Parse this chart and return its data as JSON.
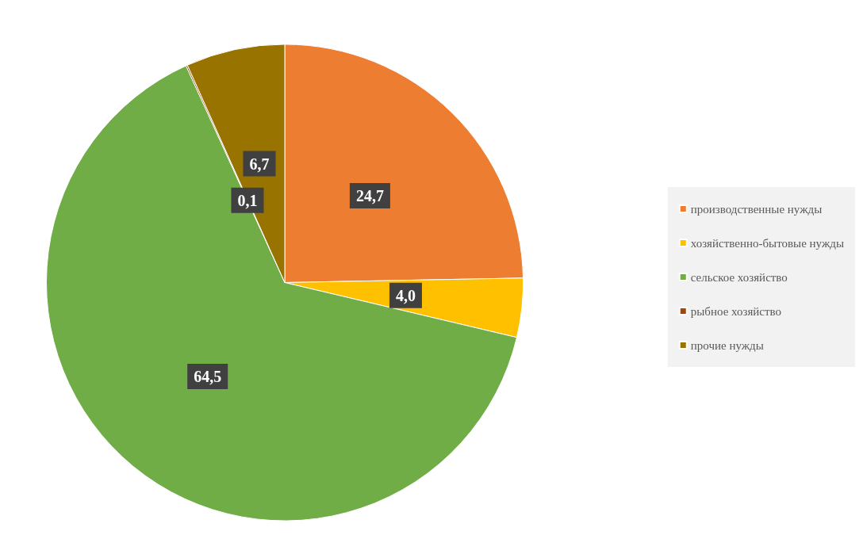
{
  "chart_data": {
    "type": "pie",
    "categories": [
      "производственные нужды",
      "хозяйственно-бытовые нужды",
      "сельское хозяйство",
      "рыбное хозяйство",
      "прочие нужды"
    ],
    "values": [
      24.7,
      4.0,
      64.5,
      0.1,
      6.7
    ],
    "value_labels": [
      "24,7",
      "4,0",
      "64,5",
      "0,1",
      "6,7"
    ],
    "colors": [
      "#ed7d31",
      "#ffc000",
      "#70ad47",
      "#9e480e",
      "#997300"
    ],
    "legend": "right"
  }
}
